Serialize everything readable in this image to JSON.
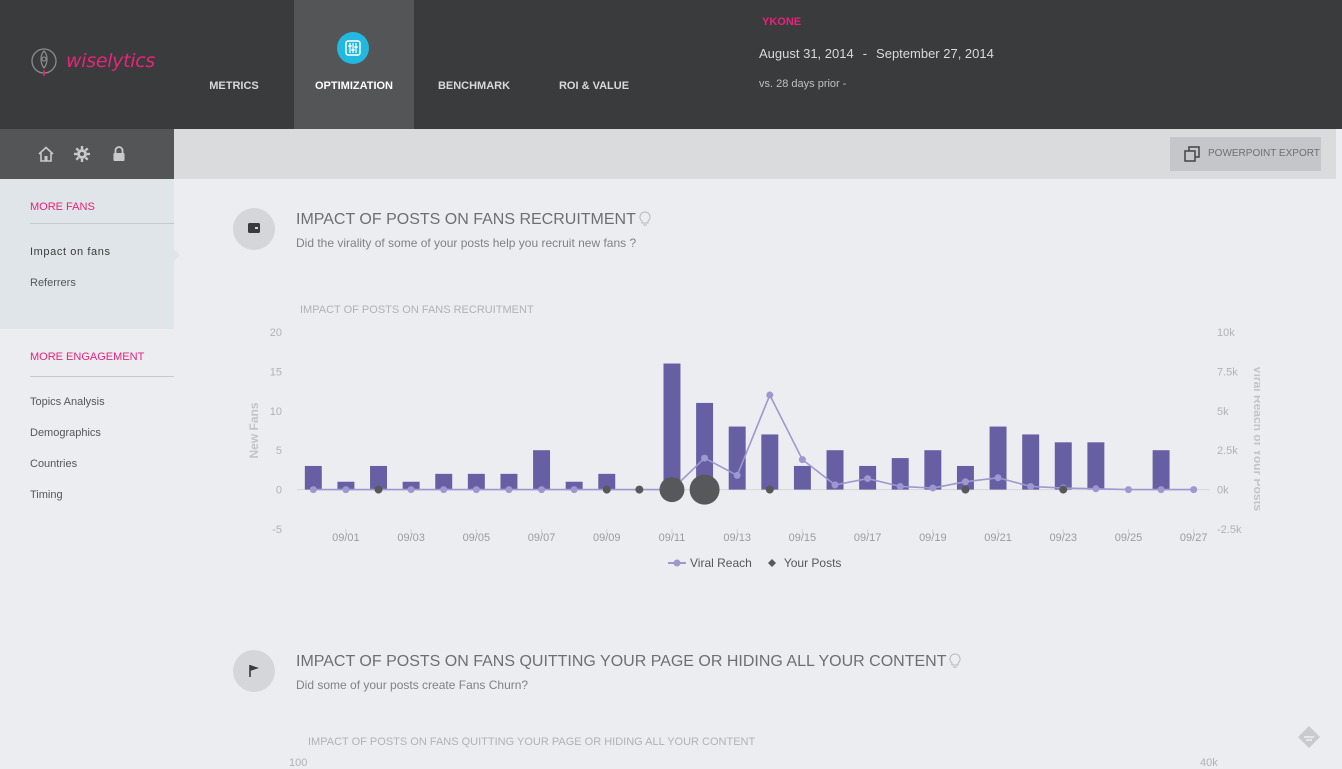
{
  "app": {
    "name": "wiselytics"
  },
  "nav": {
    "tabs": [
      {
        "label": "METRICS",
        "active": false
      },
      {
        "label": "OPTIMIZATION",
        "active": true
      },
      {
        "label": "BENCHMARK",
        "active": false
      },
      {
        "label": "ROI & VALUE",
        "active": false
      }
    ]
  },
  "header": {
    "brand": "YKONE",
    "date_start": "August 31, 2014",
    "date_sep": "-",
    "date_end": "September 27, 2014",
    "comparison": "vs. 28 days prior  -"
  },
  "sidebar": {
    "tools": [
      "home-icon",
      "gear-icon",
      "lock-icon"
    ],
    "section1": {
      "title": "MORE FANS",
      "items": [
        {
          "label": "Impact on fans",
          "active": true
        },
        {
          "label": "Referrers",
          "active": false
        }
      ]
    },
    "section2": {
      "title": "MORE ENGAGEMENT",
      "items": [
        {
          "label": "Topics Analysis"
        },
        {
          "label": "Demographics"
        },
        {
          "label": "Countries"
        },
        {
          "label": "Timing"
        }
      ]
    }
  },
  "toolbar": {
    "export_label": "POWERPOINT EXPORT"
  },
  "sections": [
    {
      "title": "IMPACT OF POSTS ON FANS RECRUITMENT",
      "subtitle": "Did the virality of some of your posts help you recruit new fans ?",
      "chart_title": "IMPACT OF POSTS ON FANS RECRUITMENT"
    },
    {
      "title": "IMPACT OF POSTS ON FANS QUITTING YOUR PAGE OR HIDING ALL YOUR CONTENT",
      "subtitle": "Did some of your posts create Fans Churn?",
      "chart_title": "IMPACT OF POSTS ON FANS QUITTING YOUR PAGE OR HIDING ALL YOUR CONTENT",
      "left_tick_top": "100",
      "right_tick_top": "40k"
    }
  ],
  "colors": {
    "accent": "#e8237a",
    "bar": "#665fa3",
    "line": "#9d98cf",
    "post": "#57585a",
    "active_icon": "#23b8e0"
  },
  "chart_data": {
    "type": "bar",
    "title": "IMPACT OF POSTS ON FANS RECRUITMENT",
    "ylabel": "New Fans",
    "y2label": "Viral Reach of Your Posts",
    "ylim": [
      -5,
      20
    ],
    "y2lim": [
      -2500,
      10000
    ],
    "yticks": [
      "20",
      "15",
      "10",
      "5",
      "0",
      "-5"
    ],
    "y2ticks": [
      "10k",
      "7.5k",
      "5k",
      "2.5k",
      "0k",
      "-2.5k"
    ],
    "x_tick_labels": [
      "09/01",
      "09/03",
      "09/05",
      "09/07",
      "09/09",
      "09/11",
      "09/13",
      "09/15",
      "09/17",
      "09/19",
      "09/21",
      "09/23",
      "09/25",
      "09/27"
    ],
    "dates": [
      "08/31",
      "09/01",
      "09/02",
      "09/03",
      "09/04",
      "09/05",
      "09/06",
      "09/07",
      "09/08",
      "09/09",
      "09/10",
      "09/11",
      "09/12",
      "09/13",
      "09/14",
      "09/15",
      "09/16",
      "09/17",
      "09/18",
      "09/19",
      "09/20",
      "09/21",
      "09/22",
      "09/23",
      "09/24",
      "09/25",
      "09/26",
      "09/27"
    ],
    "series": [
      {
        "name": "New Fans",
        "axis": "left",
        "kind": "bar",
        "values": [
          3,
          1,
          3,
          1,
          2,
          2,
          2,
          5,
          1,
          2,
          0,
          16,
          11,
          8,
          7,
          3,
          5,
          3,
          4,
          5,
          3,
          8,
          7,
          6,
          6,
          0,
          5,
          0
        ]
      },
      {
        "name": "Viral Reach",
        "axis": "right",
        "kind": "line",
        "values": [
          0,
          0,
          0,
          0,
          0,
          0,
          0,
          0,
          0,
          0,
          0,
          0,
          2000,
          900,
          6000,
          1900,
          300,
          700,
          200,
          100,
          500,
          750,
          200,
          100,
          50,
          0,
          0,
          0
        ]
      },
      {
        "name": "Your Posts",
        "axis": "left",
        "kind": "scatter",
        "points": [
          {
            "date": "09/02",
            "size": 1
          },
          {
            "date": "09/09",
            "size": 1
          },
          {
            "date": "09/10",
            "size": 1
          },
          {
            "date": "09/11",
            "size": 3
          },
          {
            "date": "09/12",
            "size": 4
          },
          {
            "date": "09/14",
            "size": 1
          },
          {
            "date": "09/20",
            "size": 1
          },
          {
            "date": "09/23",
            "size": 1
          }
        ]
      }
    ],
    "legend": [
      "Viral Reach",
      "Your Posts"
    ],
    "legend_position": "bottom"
  }
}
